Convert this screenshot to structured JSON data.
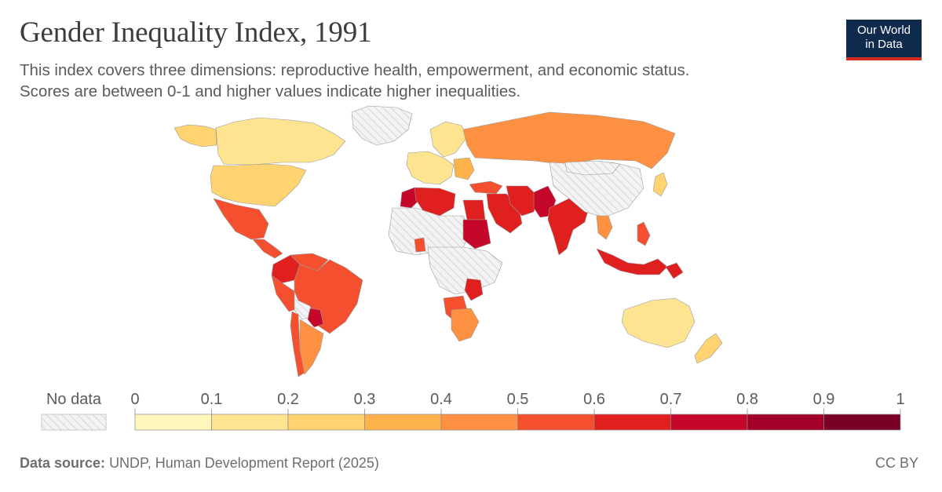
{
  "title": "Gender Inequality Index, 1991",
  "subtitle_line1": "This index covers three dimensions: reproductive health, empowerment, and economic status.",
  "subtitle_line2": "Scores are between 0-1 and higher values indicate higher inequalities.",
  "logo": {
    "line1": "Our World",
    "line2": "in Data",
    "bg_color": "#0e2a4c",
    "accent_color": "#d42b21"
  },
  "legend": {
    "no_data_label": "No data",
    "ticks": [
      "0",
      "0.1",
      "0.2",
      "0.3",
      "0.4",
      "0.5",
      "0.6",
      "0.7",
      "0.8",
      "0.9",
      "1"
    ],
    "bins": [
      {
        "min": 0.0,
        "max": 0.1,
        "color": "#fff7bc"
      },
      {
        "min": 0.1,
        "max": 0.2,
        "color": "#fee391"
      },
      {
        "min": 0.2,
        "max": 0.3,
        "color": "#fed370"
      },
      {
        "min": 0.3,
        "max": 0.4,
        "color": "#feb24c"
      },
      {
        "min": 0.4,
        "max": 0.5,
        "color": "#fd9141"
      },
      {
        "min": 0.5,
        "max": 0.6,
        "color": "#f4502f"
      },
      {
        "min": 0.6,
        "max": 0.7,
        "color": "#e01f1f"
      },
      {
        "min": 0.7,
        "max": 0.8,
        "color": "#c5082a"
      },
      {
        "min": 0.8,
        "max": 0.9,
        "color": "#a20026"
      },
      {
        "min": 0.9,
        "max": 1.0,
        "color": "#7a0026"
      }
    ]
  },
  "map": {
    "regions": [
      {
        "id": "canada",
        "bin": 1
      },
      {
        "id": "usa",
        "bin": 2
      },
      {
        "id": "alaska",
        "bin": 2
      },
      {
        "id": "greenland",
        "bin": -1
      },
      {
        "id": "mexico",
        "bin": 5
      },
      {
        "id": "central-america",
        "bin": 5
      },
      {
        "id": "colombia",
        "bin": 6
      },
      {
        "id": "venezuela",
        "bin": 5
      },
      {
        "id": "brazil",
        "bin": 5
      },
      {
        "id": "peru",
        "bin": 5
      },
      {
        "id": "bolivia",
        "bin": -1
      },
      {
        "id": "paraguay",
        "bin": 7
      },
      {
        "id": "argentina",
        "bin": 4
      },
      {
        "id": "chile",
        "bin": 5
      },
      {
        "id": "western-europe",
        "bin": 1
      },
      {
        "id": "scandinavia",
        "bin": 1
      },
      {
        "id": "eastern-europe",
        "bin": 3
      },
      {
        "id": "russia",
        "bin": 4
      },
      {
        "id": "turkey",
        "bin": 5
      },
      {
        "id": "middle-east",
        "bin": 6
      },
      {
        "id": "iran",
        "bin": 6
      },
      {
        "id": "pakistan",
        "bin": 7
      },
      {
        "id": "india",
        "bin": 6
      },
      {
        "id": "china",
        "bin": -1
      },
      {
        "id": "mongolia",
        "bin": -1
      },
      {
        "id": "southeast-asia",
        "bin": 4
      },
      {
        "id": "indonesia",
        "bin": 6
      },
      {
        "id": "philippines",
        "bin": 5
      },
      {
        "id": "papua",
        "bin": 6
      },
      {
        "id": "japan",
        "bin": 2
      },
      {
        "id": "australia",
        "bin": 1
      },
      {
        "id": "new-zealand",
        "bin": 2
      },
      {
        "id": "morocco",
        "bin": 7
      },
      {
        "id": "algeria",
        "bin": 6
      },
      {
        "id": "sahara",
        "bin": -1
      },
      {
        "id": "egypt",
        "bin": 6
      },
      {
        "id": "sudan",
        "bin": 7
      },
      {
        "id": "central-africa",
        "bin": -1
      },
      {
        "id": "ghana",
        "bin": 5
      },
      {
        "id": "southern-africa-west",
        "bin": 5
      },
      {
        "id": "south-africa",
        "bin": 4
      },
      {
        "id": "mozambique-region",
        "bin": 6
      }
    ]
  },
  "footer": {
    "source_label": "Data source:",
    "source_text": "UNDP, Human Development Report (2025)",
    "license": "CC BY"
  }
}
